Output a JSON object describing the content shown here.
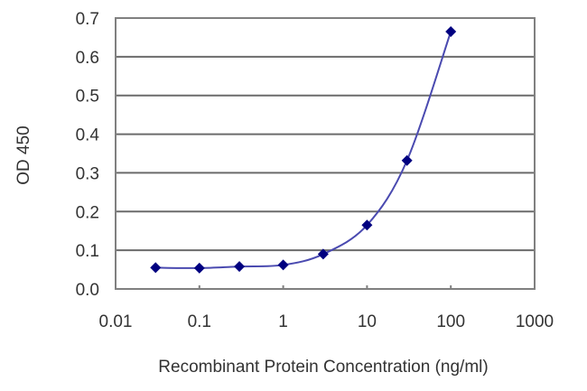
{
  "chart_data": {
    "type": "line",
    "title": "",
    "xlabel": "Recombinant Protein Concentration (ng/ml)",
    "ylabel": "OD 450",
    "x_scale": "log",
    "xlim": [
      0.01,
      1000
    ],
    "ylim": [
      0.0,
      0.7
    ],
    "x_ticks": [
      "0.01",
      "0.1",
      "1",
      "10",
      "100",
      "1000"
    ],
    "y_ticks": [
      "0.0",
      "0.1",
      "0.2",
      "0.3",
      "0.4",
      "0.5",
      "0.6",
      "0.7"
    ],
    "grid": {
      "horizontal": true,
      "vertical": false
    },
    "legend": null,
    "series": [
      {
        "name": "OD 450",
        "color": "#000080",
        "line_color": "#4a4ab0",
        "marker": "diamond",
        "x": [
          0.03,
          0.1,
          0.3,
          1,
          3,
          10,
          30,
          100
        ],
        "values": [
          0.055,
          0.054,
          0.058,
          0.062,
          0.09,
          0.165,
          0.332,
          0.665
        ]
      }
    ]
  }
}
